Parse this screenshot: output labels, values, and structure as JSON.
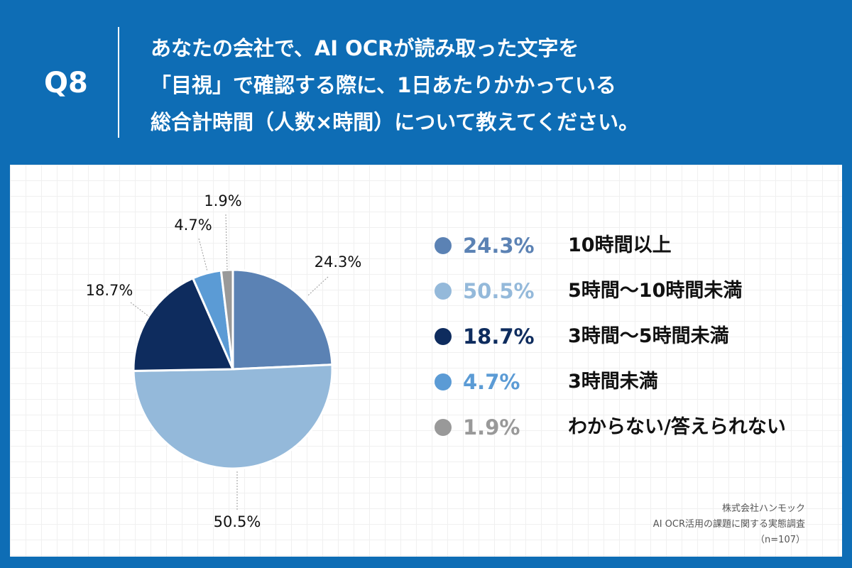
{
  "header": {
    "q_label": "Q8",
    "question_lines": [
      "あなたの会社で、AI OCRが読み取った文字を",
      "「目視」で確認する際に、1日あたりかかっている",
      "総合計時間（人数×時間）について教えてください。"
    ]
  },
  "chart_data": {
    "type": "pie",
    "title": "",
    "slices": [
      {
        "label": "10時間以上",
        "value": 24.3,
        "display": "24.3%",
        "color": "#5b82b4"
      },
      {
        "label": "5時間〜10時間未満",
        "value": 50.5,
        "display": "50.5%",
        "color": "#94b9da"
      },
      {
        "label": "3時間〜5時間未満",
        "value": 18.7,
        "display": "18.7%",
        "color": "#0e2c5e"
      },
      {
        "label": "3時間未満",
        "value": 4.7,
        "display": "4.7%",
        "color": "#5b9bd5"
      },
      {
        "label": "わからない/答えられない",
        "value": 1.9,
        "display": "1.9%",
        "color": "#999999"
      }
    ],
    "legend_placement": "right"
  },
  "source": {
    "company": "株式会社ハンモック",
    "survey": "AI OCR活用の課題に関する実態調査",
    "n": "（n=107）"
  }
}
